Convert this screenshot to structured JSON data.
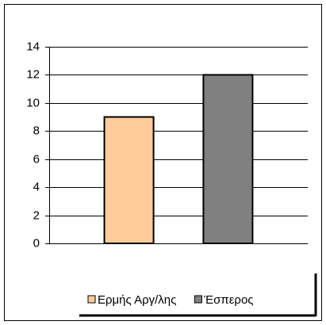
{
  "chart_data": {
    "type": "bar",
    "categories": [
      null
    ],
    "series": [
      {
        "name": "Ερμής Αργ/λης",
        "color": "#ffcc99",
        "values": [
          9
        ]
      },
      {
        "name": "Έσπερος",
        "color": "#808080",
        "values": [
          12
        ]
      }
    ],
    "ylim": [
      0,
      14
    ],
    "yticks": [
      0,
      2,
      4,
      6,
      8,
      10,
      12,
      14
    ],
    "grid": true
  }
}
